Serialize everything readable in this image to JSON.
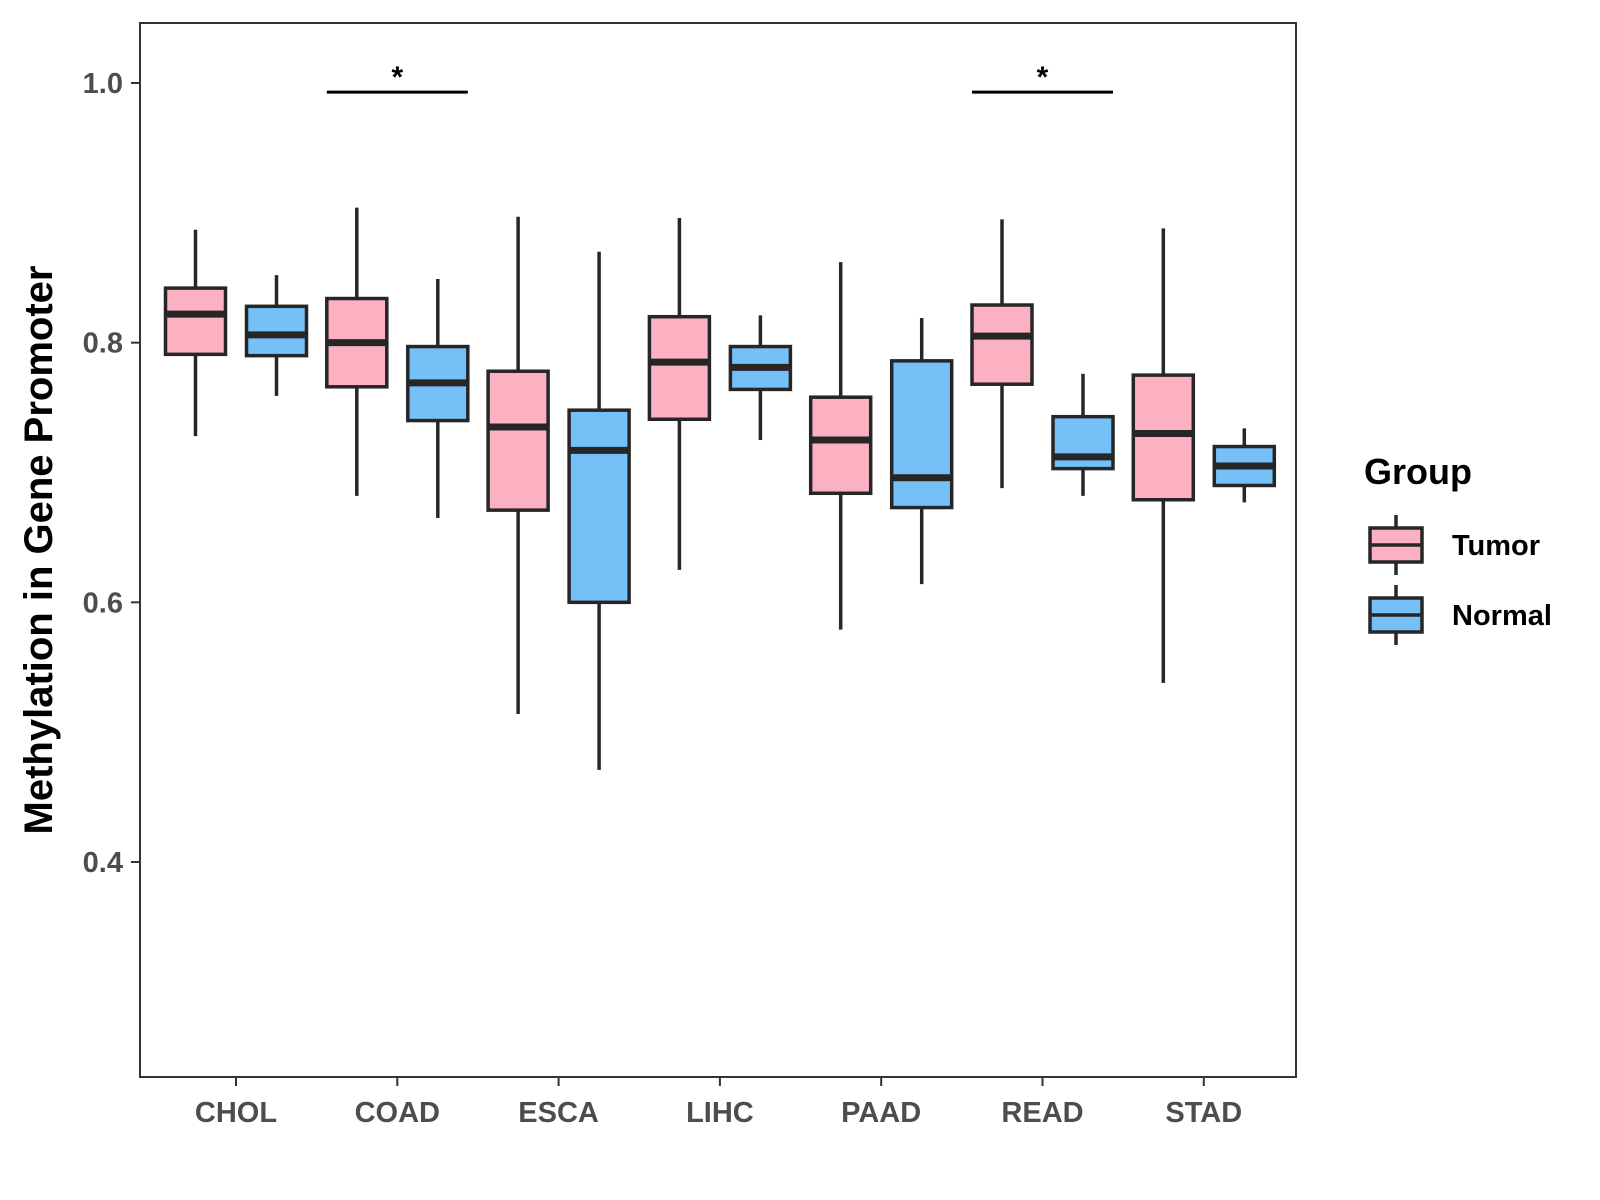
{
  "chart_data": {
    "type": "boxplot",
    "title": "",
    "xlabel": "",
    "ylabel": "Methylation in Gene Promoter",
    "ylim": [
      0.24,
      1.05
    ],
    "yticks": [
      0.4,
      0.6,
      0.8,
      1.0
    ],
    "ytick_labels": [
      "0.4",
      "0.6",
      "0.8",
      "1.0"
    ],
    "categories": [
      "CHOL",
      "COAD",
      "ESCA",
      "LIHC",
      "PAAD",
      "READ",
      "STAD"
    ],
    "legend": {
      "title": "Group",
      "position": "right",
      "entries": [
        {
          "name": "Tumor",
          "color": "#fbb1c2"
        },
        {
          "name": "Normal",
          "color": "#76c0f8"
        }
      ]
    },
    "series": [
      {
        "name": "Tumor",
        "color": "#fbb1c2",
        "boxes": [
          {
            "min": 0.728,
            "q1": 0.791,
            "median": 0.822,
            "q3": 0.842,
            "max": 0.887
          },
          {
            "min": 0.682,
            "q1": 0.766,
            "median": 0.8,
            "q3": 0.834,
            "max": 0.904
          },
          {
            "min": 0.514,
            "q1": 0.671,
            "median": 0.735,
            "q3": 0.778,
            "max": 0.897
          },
          {
            "min": 0.625,
            "q1": 0.741,
            "median": 0.785,
            "q3": 0.82,
            "max": 0.896
          },
          {
            "min": 0.579,
            "q1": 0.684,
            "median": 0.725,
            "q3": 0.758,
            "max": 0.862
          },
          {
            "min": 0.688,
            "q1": 0.768,
            "median": 0.805,
            "q3": 0.829,
            "max": 0.895
          },
          {
            "min": 0.538,
            "q1": 0.679,
            "median": 0.73,
            "q3": 0.775,
            "max": 0.888
          }
        ]
      },
      {
        "name": "Normal",
        "color": "#76c0f8",
        "boxes": [
          {
            "min": 0.759,
            "q1": 0.79,
            "median": 0.806,
            "q3": 0.828,
            "max": 0.852
          },
          {
            "min": 0.665,
            "q1": 0.74,
            "median": 0.769,
            "q3": 0.797,
            "max": 0.849
          },
          {
            "min": 0.471,
            "q1": 0.6,
            "median": 0.717,
            "q3": 0.748,
            "max": 0.87
          },
          {
            "min": 0.725,
            "q1": 0.764,
            "median": 0.781,
            "q3": 0.797,
            "max": 0.821
          },
          {
            "min": 0.614,
            "q1": 0.673,
            "median": 0.696,
            "q3": 0.786,
            "max": 0.819
          },
          {
            "min": 0.682,
            "q1": 0.703,
            "median": 0.712,
            "q3": 0.743,
            "max": 0.776
          },
          {
            "min": 0.677,
            "q1": 0.69,
            "median": 0.705,
            "q3": 0.72,
            "max": 0.734
          }
        ]
      }
    ],
    "significance": [
      {
        "category": "COAD",
        "label": "*",
        "y": 0.993
      },
      {
        "category": "READ",
        "label": "*",
        "y": 0.993
      }
    ]
  }
}
